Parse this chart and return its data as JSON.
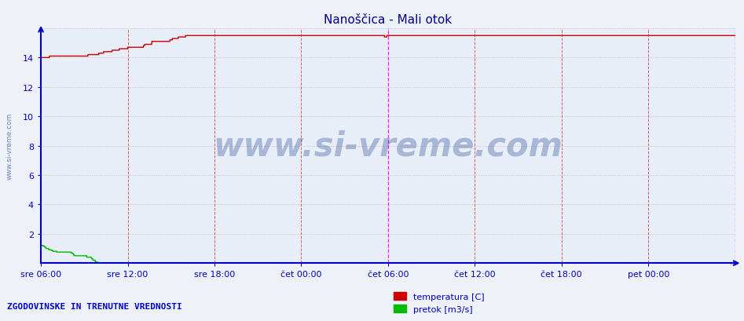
{
  "title": "Nanoščica - Mali otok",
  "title_color": "#00008B",
  "title_fontsize": 11,
  "fig_bg_color": "#eef2f8",
  "plot_bg_color": "#e8eef8",
  "axis_color": "#0000cc",
  "ylabel_left": "www.si-vreme.com",
  "legend_text": [
    "temperatura [C]",
    "pretok [m3/s]"
  ],
  "legend_colors": [
    "#cc0000",
    "#00bb00"
  ],
  "bottom_text": "ZGODOVINSKE IN TRENUTNE VREDNOSTI",
  "xlim_start": 0,
  "xlim_end": 576,
  "ylim": [
    0,
    16
  ],
  "yticks": [
    2,
    4,
    6,
    8,
    10,
    12,
    14
  ],
  "xtick_labels": [
    "sre 06:00",
    "sre 12:00",
    "sre 18:00",
    "čet 00:00",
    "čet 06:00",
    "čet 12:00",
    "čet 18:00",
    "pet 00:00"
  ],
  "xtick_positions": [
    0,
    72,
    144,
    216,
    288,
    360,
    432,
    504
  ],
  "vertical_lines_red": [
    72,
    144,
    216,
    360,
    432,
    504
  ],
  "vertical_lines_magenta": [
    288,
    576
  ],
  "temp_color": "#cc0000",
  "flow_color": "#00bb00",
  "watermark": "www.si-vreme.com",
  "watermark_color": "#1a3a8a",
  "watermark_alpha": 0.3,
  "watermark_fontsize": 30
}
